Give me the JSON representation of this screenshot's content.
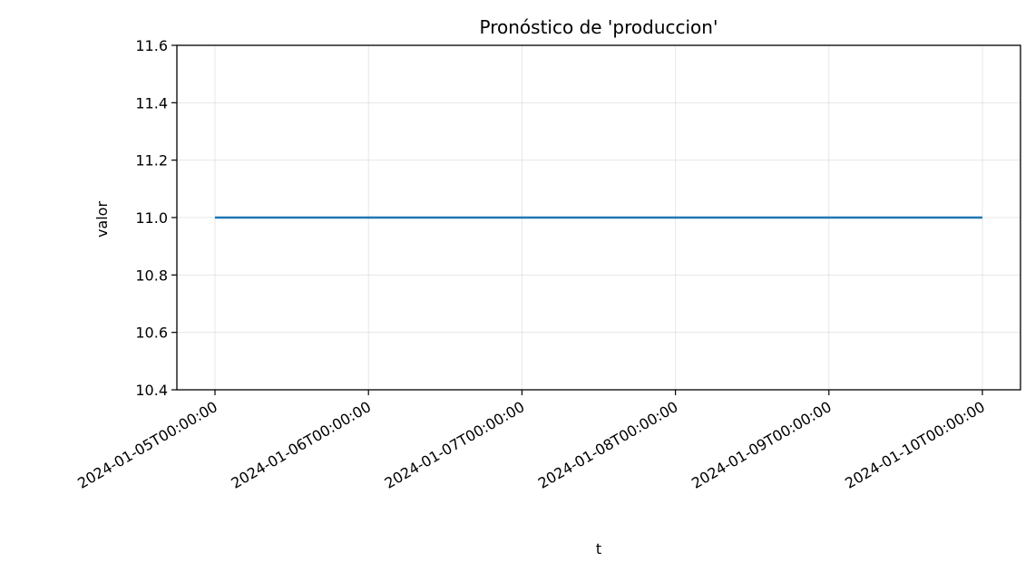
{
  "chart_data": {
    "type": "line",
    "title": "Pronóstico de 'produccion'",
    "xlabel": "t",
    "ylabel": "valor",
    "x": [
      "2024-01-05T00:00:00",
      "2024-01-06T00:00:00",
      "2024-01-07T00:00:00",
      "2024-01-08T00:00:00",
      "2024-01-09T00:00:00",
      "2024-01-10T00:00:00"
    ],
    "x_ticks": [
      "2024-01-05T00:00:00",
      "2024-01-06T00:00:00",
      "2024-01-07T00:00:00",
      "2024-01-08T00:00:00",
      "2024-01-09T00:00:00",
      "2024-01-10T00:00:00"
    ],
    "series": [
      {
        "values": [
          11.0,
          11.0,
          11.0,
          11.0,
          11.0,
          11.0
        ],
        "color": "#1f77b4"
      }
    ],
    "ylim": [
      10.4,
      11.6
    ],
    "y_ticks": [
      10.4,
      10.6,
      10.8,
      11.0,
      11.2,
      11.4,
      11.6
    ],
    "grid": true
  }
}
